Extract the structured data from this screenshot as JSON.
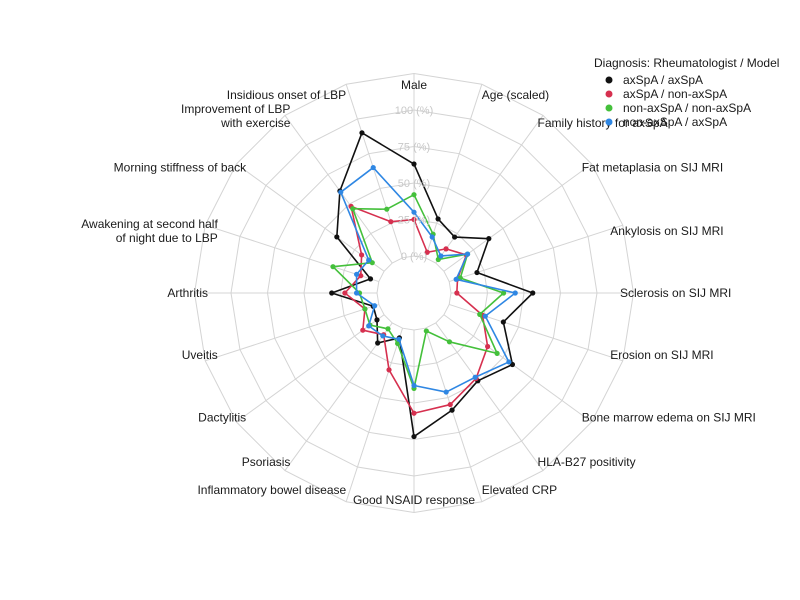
{
  "chart_data": {
    "type": "radar",
    "rlim": [
      0,
      100
    ],
    "grid": true,
    "grid_labels": [
      "0 (%)",
      "25 (%)",
      "50 (%)",
      "75 (%)",
      "100 (%)"
    ],
    "legend_placement": "top-right",
    "legend_title": "Diagnosis: Rheumatologist / Model",
    "categories": [
      "Male",
      "Age (scaled)",
      "Family history for axSpA",
      "Fat metaplasia on SIJ MRI",
      "Ankylosis on SIJ MRI",
      "Sclerosis on SIJ MRI",
      "Erosion on SIJ MRI",
      "Bone marrow edema on SIJ MRI",
      "HLA-B27 positivity",
      "Elevated CRP",
      "Good NSAID response",
      "Inflammatory bowel disease",
      "Psoriasis",
      "Dactylitis",
      "Uveitis",
      "Arthritis",
      "Awakening at second half\nof night due to LBP",
      "Morning stiffness of back",
      "Improvement of LBP\nwith exercise",
      "Insidious onset of LBP"
    ],
    "series": [
      {
        "name": "axSpA / axSpA",
        "color": "#111111",
        "values": [
          63,
          28,
          22,
          38,
          20,
          56,
          39,
          58,
          49,
          59,
          73,
          7,
          17,
          6,
          4,
          31,
          6,
          40,
          61,
          90
        ]
      },
      {
        "name": "axSpA / non-axSpA",
        "color": "#d6304f",
        "values": [
          25,
          4,
          12,
          19,
          6,
          4,
          24,
          37,
          47,
          55,
          57,
          30,
          10,
          18,
          10,
          22,
          13,
          19,
          48,
          26
        ]
      },
      {
        "name": "non-axSpA / non-axSpA",
        "color": "#44c03b",
        "values": [
          42,
          17,
          3,
          20,
          8,
          36,
          22,
          45,
          16,
          2,
          40,
          11,
          5,
          12,
          10,
          12,
          33,
          10,
          46,
          35
        ]
      },
      {
        "name": "non-axSpA / axSpA",
        "color": "#2f87e3",
        "values": [
          30,
          15,
          6,
          20,
          5,
          44,
          26,
          55,
          46,
          46,
          38,
          8,
          11,
          13,
          3,
          14,
          16,
          13,
          60,
          65
        ]
      }
    ]
  }
}
